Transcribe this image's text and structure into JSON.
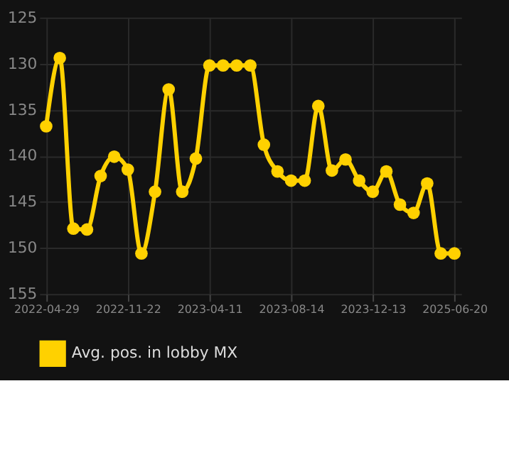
{
  "chart_data": {
    "type": "line",
    "categories": [
      "2022-04-29",
      null,
      null,
      null,
      null,
      null,
      "2022-11-22",
      null,
      null,
      null,
      null,
      null,
      "2023-04-11",
      null,
      null,
      null,
      null,
      null,
      "2023-08-14",
      null,
      null,
      null,
      null,
      null,
      "2023-12-13",
      null,
      null,
      null,
      null,
      null,
      "2025-06-20"
    ],
    "series": [
      {
        "name": "Avg. pos. in lobby MX",
        "color": "#ffd100",
        "values": [
          136.8,
          129.4,
          147.9,
          148.0,
          142.2,
          140.1,
          141.5,
          150.6,
          143.9,
          132.8,
          143.9,
          140.3,
          130.2,
          130.2,
          130.2,
          130.2,
          138.8,
          141.7,
          142.7,
          142.7,
          134.6,
          141.6,
          140.4,
          142.7,
          143.9,
          141.7,
          145.3,
          146.2,
          143.0,
          150.6,
          150.6
        ]
      }
    ],
    "ylim": [
      155,
      125
    ],
    "yticks": [
      125,
      130,
      135,
      140,
      145,
      150,
      155
    ],
    "grid": true,
    "legend": "bottom",
    "marker": "circle",
    "line_style": "solid"
  }
}
